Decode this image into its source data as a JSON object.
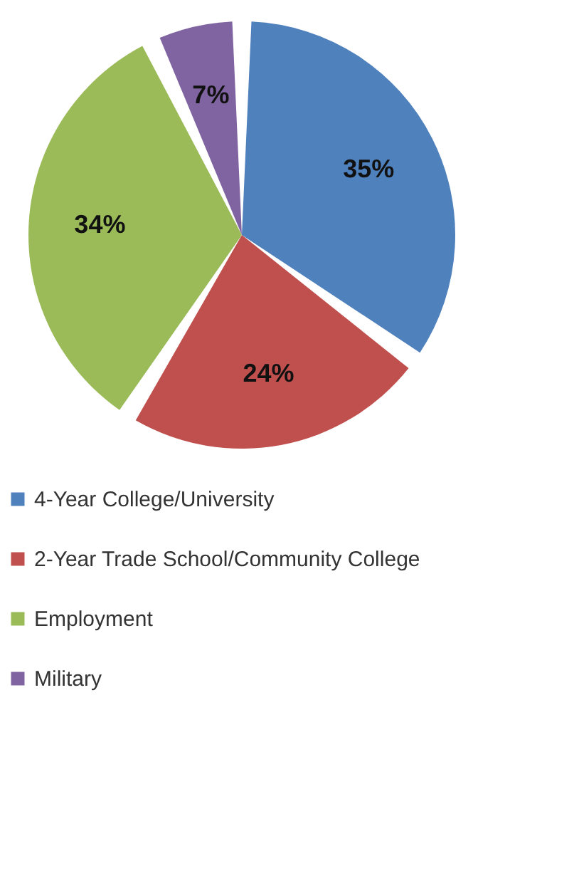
{
  "chart_data": {
    "type": "pie",
    "categories": [
      "4-Year College/University",
      "2-Year Trade School/Community College",
      "Employment",
      "Military"
    ],
    "values": [
      35,
      24,
      34,
      7
    ],
    "colors": [
      "#4f81bd",
      "#c0504d",
      "#9bbb59",
      "#8064a2"
    ],
    "value_labels": [
      "35%",
      "24%",
      "34%",
      "7%"
    ],
    "legend": "bottom"
  }
}
